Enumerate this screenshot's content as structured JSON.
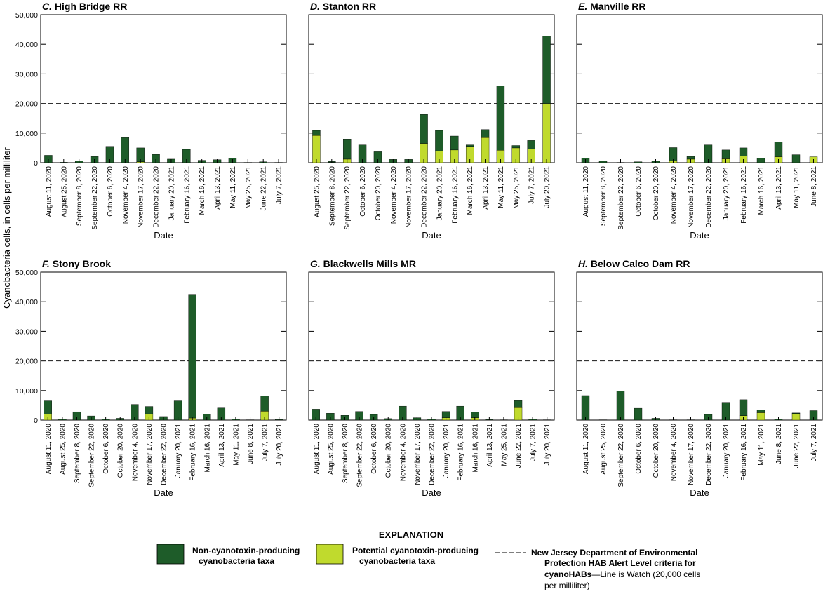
{
  "y_axis_title": "Cyanobacteria cells, in cells per milliliter",
  "x_axis_title": "Date",
  "y_tick_labels": [
    "0",
    "10,000",
    "20,000",
    "30,000",
    "40,000",
    "50,000"
  ],
  "colors": {
    "non_toxin": "#1e5c29",
    "toxin": "#c0da2d",
    "frame": "#000000",
    "alert_line": "#333333"
  },
  "legend": {
    "heading": "EXPLANATION",
    "non_toxin_line1": "Non-cyanotoxin-producing",
    "non_toxin_line2": "cyanobacteria taxa",
    "toxin_line1": "Potential cyanotoxin-producing",
    "toxin_line2": "cyanobacteria taxa",
    "alert_line1": "New Jersey Department of Environmental",
    "alert_line2": "Protection HAB Alert Level criteria for",
    "alert_line3_bold": "cyanoHABs",
    "alert_line3_rest": "—Line is Watch (20,000 cells",
    "alert_line4": "per milliliter)"
  },
  "chart_data": [
    {
      "type": "bar",
      "stacked": true,
      "letter": "C.",
      "title": "High Bridge RR",
      "xlabel": "Date",
      "ylabel": "Cyanobacteria cells, in cells per milliliter",
      "ylim": [
        0,
        50000
      ],
      "alert_level": 20000,
      "categories": [
        "August 11, 2020",
        "August 25, 2020",
        "September 8, 2020",
        "September 22, 2020",
        "October 6, 2020",
        "November 4, 2020",
        "November 17, 2020",
        "December 22, 2020",
        "January 20, 2021",
        "February 16, 2021",
        "March 16, 2021",
        "April 13, 2021",
        "May 11, 2021",
        "May 25, 2021",
        "June 22, 2021",
        "July 7, 2021"
      ],
      "series": [
        {
          "name": "Potential cyanotoxin-producing cyanobacteria taxa",
          "values": [
            0,
            0,
            0,
            0,
            0,
            0,
            300,
            0,
            0,
            0,
            0,
            0,
            0,
            0,
            0,
            0
          ]
        },
        {
          "name": "Non-cyanotoxin-producing cyanobacteria taxa",
          "values": [
            2500,
            150,
            600,
            2100,
            5500,
            8500,
            4700,
            2800,
            1200,
            4500,
            800,
            1000,
            1600,
            100,
            300,
            100
          ]
        }
      ]
    },
    {
      "type": "bar",
      "stacked": true,
      "letter": "D.",
      "title": "Stanton RR",
      "xlabel": "Date",
      "ylabel": "Cyanobacteria cells, in cells per milliliter",
      "ylim": [
        0,
        50000
      ],
      "alert_level": 20000,
      "categories": [
        "August 25, 2020",
        "September 8, 2020",
        "September 22, 2020",
        "October 6, 2020",
        "October 20, 2020",
        "November 4, 2020",
        "November 17, 2020",
        "December 22, 2020",
        "January 20, 2021",
        "February 16, 2021",
        "March 16, 2021",
        "April 13, 2021",
        "May 11, 2021",
        "May 25, 2021",
        "July 7, 2021",
        "July 20, 2021"
      ],
      "series": [
        {
          "name": "Potential cyanotoxin-producing cyanobacteria taxa",
          "values": [
            9200,
            100,
            1200,
            0,
            0,
            0,
            0,
            6500,
            4000,
            4300,
            5500,
            8500,
            4200,
            5000,
            4700,
            20000
          ]
        },
        {
          "name": "Non-cyanotoxin-producing cyanobacteria taxa",
          "values": [
            1700,
            300,
            6800,
            6000,
            3700,
            1100,
            1100,
            9800,
            6900,
            4700,
            500,
            2700,
            21800,
            800,
            2800,
            22800
          ]
        }
      ]
    },
    {
      "type": "bar",
      "stacked": true,
      "letter": "E.",
      "title": "Manville RR",
      "xlabel": "Date",
      "ylabel": "Cyanobacteria cells, in cells per milliliter",
      "ylim": [
        0,
        50000
      ],
      "alert_level": 20000,
      "categories": [
        "August 11, 2020",
        "September 8, 2020",
        "September 22, 2020",
        "October 6, 2020",
        "October 20, 2020",
        "November 4, 2020",
        "November 17, 2020",
        "December 22, 2020",
        "January 20, 2021",
        "February 16, 2021",
        "March 16, 2021",
        "April 13, 2021",
        "May 11, 2021",
        "June 8, 2021"
      ],
      "series": [
        {
          "name": "Potential cyanotoxin-producing cyanobacteria taxa",
          "values": [
            0,
            0,
            0,
            0,
            0,
            600,
            1200,
            0,
            1300,
            2200,
            0,
            2000,
            0,
            2000
          ]
        },
        {
          "name": "Non-cyanotoxin-producing cyanobacteria taxa",
          "values": [
            1500,
            500,
            100,
            300,
            500,
            4500,
            900,
            6000,
            3000,
            2800,
            1500,
            5000,
            2700,
            0
          ]
        }
      ]
    },
    {
      "type": "bar",
      "stacked": true,
      "letter": "F.",
      "title": "Stony Brook",
      "xlabel": "Date",
      "ylabel": "Cyanobacteria cells, in cells per milliliter",
      "ylim": [
        0,
        50000
      ],
      "alert_level": 20000,
      "categories": [
        "August 11, 2020",
        "August 25, 2020",
        "September 8, 2020",
        "September 22, 2020",
        "October 6, 2020",
        "October 20, 2020",
        "November 4, 2020",
        "November 17, 2020",
        "December 22, 2020",
        "January 20, 2021",
        "February 16, 2021",
        "March 16, 2021",
        "April 13, 2021",
        "May 11, 2021",
        "June 8, 2021",
        "July 7, 2021",
        "July 20, 2021"
      ],
      "series": [
        {
          "name": "Potential cyanotoxin-producing cyanobacteria taxa",
          "values": [
            2000,
            0,
            0,
            0,
            0,
            0,
            0,
            2100,
            0,
            0,
            700,
            0,
            0,
            0,
            0,
            3000,
            0
          ]
        },
        {
          "name": "Non-cyanotoxin-producing cyanobacteria taxa",
          "values": [
            4500,
            400,
            2800,
            1400,
            300,
            600,
            5300,
            2500,
            1200,
            6500,
            41800,
            2000,
            4100,
            300,
            100,
            5200,
            200
          ]
        }
      ]
    },
    {
      "type": "bar",
      "stacked": true,
      "letter": "G.",
      "title": "Blackwells Mills MR",
      "xlabel": "Date",
      "ylabel": "Cyanobacteria cells, in cells per milliliter",
      "ylim": [
        0,
        50000
      ],
      "alert_level": 20000,
      "categories": [
        "August 11, 2020",
        "August 25, 2020",
        "September 8, 2020",
        "September 22, 2020",
        "October 6, 2020",
        "October 20, 2020",
        "November 4, 2020",
        "November 17, 2020",
        "December 22, 2020",
        "January 20, 2021",
        "February 16, 2021",
        "March 16, 2021",
        "April 13, 2021",
        "May 25, 2021",
        "June 22, 2021",
        "July 7, 2021",
        "July 20, 2021"
      ],
      "series": [
        {
          "name": "Potential cyanotoxin-producing cyanobacteria taxa",
          "values": [
            0,
            0,
            0,
            0,
            0,
            0,
            0,
            0,
            0,
            800,
            0,
            800,
            0,
            0,
            4200,
            0,
            0
          ]
        },
        {
          "name": "Non-cyanotoxin-producing cyanobacteria taxa",
          "values": [
            3700,
            2300,
            1600,
            2900,
            1900,
            500,
            4700,
            800,
            300,
            2100,
            4700,
            1900,
            200,
            100,
            2400,
            300,
            100
          ]
        }
      ]
    },
    {
      "type": "bar",
      "stacked": true,
      "letter": "H.",
      "title": "Below Calco Dam RR",
      "xlabel": "Date",
      "ylabel": "Cyanobacteria cells, in cells per milliliter",
      "ylim": [
        0,
        50000
      ],
      "alert_level": 20000,
      "categories": [
        "August 11, 2020",
        "August 25, 2020",
        "September 22, 2020",
        "October 6, 2020",
        "October 20, 2020",
        "November 4, 2020",
        "November 17, 2020",
        "December 22, 2020",
        "January 20, 2021",
        "February 16, 2021",
        "May 11, 2021",
        "June 8, 2021",
        "June 22, 2021",
        "July 7, 2021"
      ],
      "series": [
        {
          "name": "Potential cyanotoxin-producing cyanobacteria taxa",
          "values": [
            0,
            0,
            0,
            0,
            0,
            0,
            0,
            0,
            0,
            1500,
            2500,
            0,
            2200,
            0
          ]
        },
        {
          "name": "Non-cyanotoxin-producing cyanobacteria taxa",
          "values": [
            8300,
            100,
            9900,
            4000,
            600,
            100,
            100,
            1900,
            6000,
            5400,
            900,
            300,
            200,
            3200
          ]
        }
      ]
    }
  ]
}
